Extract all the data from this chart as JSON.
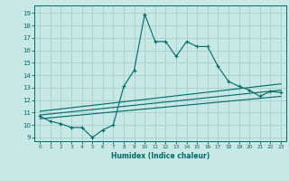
{
  "xlabel": "Humidex (Indice chaleur)",
  "bg_color": "#c8e8e6",
  "grid_color": "#a8d0cc",
  "line_color": "#006868",
  "xlim": [
    -0.5,
    23.5
  ],
  "ylim": [
    8.7,
    19.6
  ],
  "yticks": [
    9,
    10,
    11,
    12,
    13,
    14,
    15,
    16,
    17,
    18,
    19
  ],
  "xticks": [
    0,
    1,
    2,
    3,
    4,
    5,
    6,
    7,
    8,
    9,
    10,
    11,
    12,
    13,
    14,
    15,
    16,
    17,
    18,
    19,
    20,
    21,
    22,
    23
  ],
  "main_x": [
    0,
    1,
    2,
    3,
    4,
    5,
    6,
    7,
    8,
    9,
    10,
    11,
    12,
    13,
    14,
    15,
    16,
    17,
    18,
    19,
    20,
    21,
    22,
    23
  ],
  "main_y": [
    10.7,
    10.3,
    10.1,
    9.8,
    9.8,
    9.0,
    9.6,
    10.0,
    13.1,
    14.4,
    18.9,
    16.7,
    16.7,
    15.5,
    16.7,
    16.3,
    16.3,
    14.7,
    13.5,
    13.1,
    12.8,
    12.3,
    12.7,
    12.6
  ],
  "line1_x": [
    0,
    23
  ],
  "line1_y": [
    10.5,
    12.3
  ],
  "line2_x": [
    0,
    23
  ],
  "line2_y": [
    10.8,
    12.8
  ],
  "line3_x": [
    0,
    23
  ],
  "line3_y": [
    11.1,
    13.3
  ]
}
